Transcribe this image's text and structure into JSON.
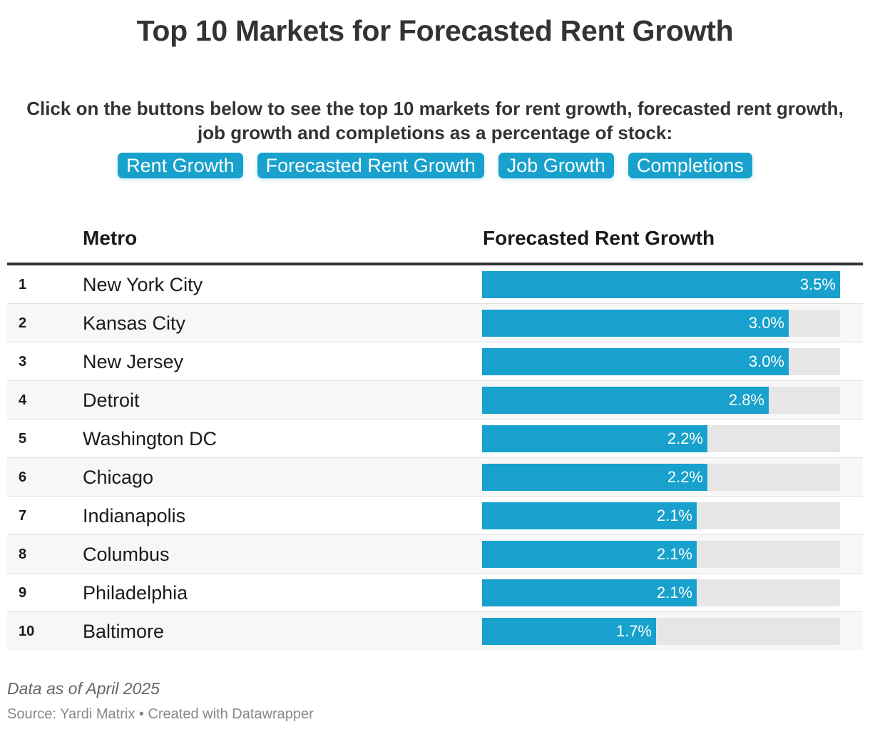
{
  "title": "Top 10 Markets for Forecasted Rent Growth",
  "intro": "Click on the buttons below to see the top 10 markets for rent growth, forecasted rent growth, job growth and completions as a percentage of stock:",
  "buttons": [
    "Rent Growth",
    "Forecasted Rent Growth",
    "Job Growth",
    "Completions"
  ],
  "table": {
    "headers": {
      "metro": "Metro",
      "value": "Forecasted Rent Growth"
    }
  },
  "colors": {
    "accent": "#18a1cd",
    "track": "#e6e6e6",
    "title": "#333333"
  },
  "chart_data": {
    "type": "bar",
    "orientation": "horizontal",
    "title": "Top 10 Markets for Forecasted Rent Growth",
    "column_label": "Forecasted Rent Growth",
    "xlim": [
      0,
      3.5
    ],
    "ranks": [
      "1",
      "2",
      "3",
      "4",
      "5",
      "6",
      "7",
      "8",
      "9",
      "10"
    ],
    "categories": [
      "New York City",
      "Kansas City",
      "New Jersey",
      "Detroit",
      "Washington DC",
      "Chicago",
      "Indianapolis",
      "Columbus",
      "Philadelphia",
      "Baltimore"
    ],
    "values": [
      3.5,
      3.0,
      3.0,
      2.8,
      2.2,
      2.2,
      2.1,
      2.1,
      2.1,
      1.7
    ],
    "labels": [
      "3.5%",
      "3.0%",
      "3.0%",
      "2.8%",
      "2.2%",
      "2.2%",
      "2.1%",
      "2.1%",
      "2.1%",
      "1.7%"
    ]
  },
  "footer": {
    "note": "Data as of April 2025",
    "source": "Source: Yardi Matrix • Created with Datawrapper"
  }
}
